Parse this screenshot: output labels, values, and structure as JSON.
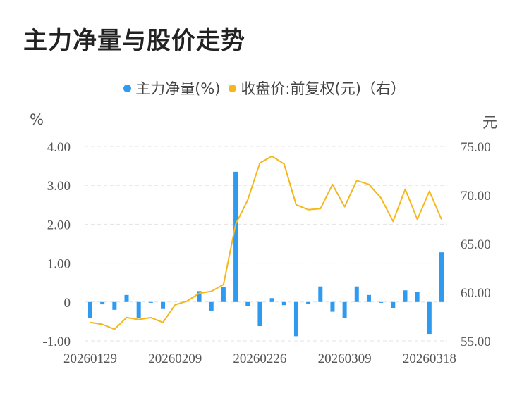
{
  "title": "主力净量与股价走势",
  "legend": {
    "series1": "主力净量(%)",
    "series2": "收盘价:前复权(元)（右）"
  },
  "units": {
    "left": "%",
    "right": "元"
  },
  "colors": {
    "bar": "#2f9bf0",
    "line": "#f4b71c",
    "grid": "#e3e3e3"
  },
  "chart_data": {
    "type": "bar+line",
    "title": "主力净量与股价走势",
    "x_tick_labels": [
      "20260129",
      "20260209",
      "20260226",
      "20260309",
      "20260318"
    ],
    "x_tick_index": [
      0,
      7,
      14,
      21,
      28
    ],
    "y_left": {
      "ticks": [
        "-1.00",
        "0",
        "1.00",
        "2.00",
        "3.00",
        "4.00"
      ],
      "ylim": [
        -1,
        4
      ]
    },
    "y_right": {
      "ticks": [
        "55.00",
        "60.00",
        "65.00",
        "70.00",
        "75.00"
      ],
      "ylim": [
        55,
        75
      ]
    },
    "series": [
      {
        "name": "主力净量(%)",
        "axis": "left",
        "type": "bar",
        "values": [
          -0.42,
          -0.06,
          -0.2,
          0.18,
          -0.42,
          -0.02,
          -0.18,
          0.0,
          0.0,
          0.28,
          -0.22,
          0.38,
          3.35,
          -0.1,
          -0.62,
          0.1,
          -0.08,
          -0.88,
          -0.04,
          0.4,
          -0.25,
          -0.42,
          0.4,
          0.18,
          -0.02,
          -0.16,
          0.3,
          0.25,
          -0.82,
          1.28
        ]
      },
      {
        "name": "收盘价:前复权(元)（右）",
        "axis": "right",
        "type": "line",
        "values": [
          56.9,
          56.7,
          56.2,
          57.4,
          57.2,
          57.4,
          56.9,
          58.7,
          59.1,
          59.9,
          60.1,
          60.8,
          67.0,
          69.5,
          73.3,
          74.0,
          73.2,
          69.0,
          68.5,
          68.6,
          71.1,
          68.8,
          71.5,
          71.1,
          69.7,
          67.3,
          70.6,
          67.5,
          70.4,
          67.5
        ]
      }
    ]
  }
}
